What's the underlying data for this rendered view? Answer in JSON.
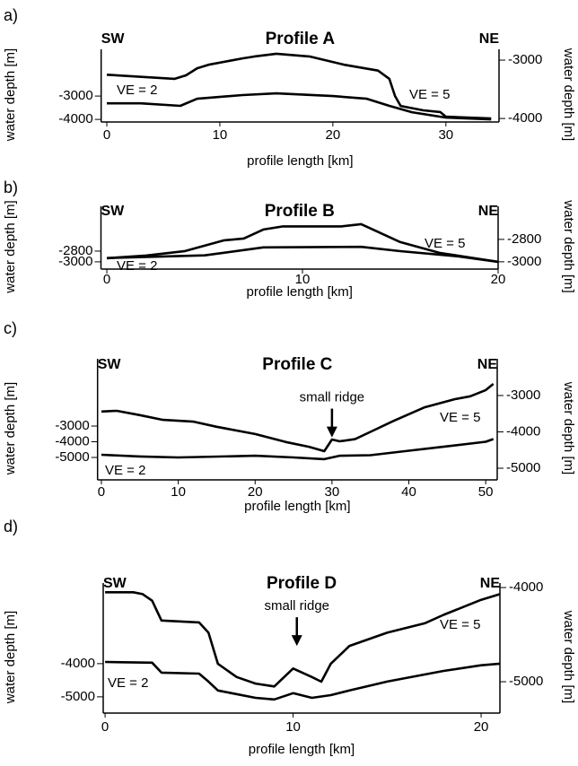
{
  "chart_data": [
    {
      "type": "line",
      "panel_label": "a)",
      "title": "Profile A",
      "left_label": "SW",
      "right_label": "NE",
      "xlabel": "profile length [km]",
      "ylabel": "water depth [m]",
      "y2label": "water depth [m]",
      "xlim": [
        -0.5,
        34.7
      ],
      "xticks": [
        0,
        10,
        20,
        30
      ],
      "ylim": [
        -4110,
        -1000
      ],
      "yticks": [
        -3000,
        -4000
      ],
      "y2lim": [
        -4060,
        -2815
      ],
      "y2ticks": [
        -3000,
        -4000
      ],
      "series": [
        {
          "name": "VE = 2",
          "color": "#000000",
          "axis": "y",
          "x": [
            0,
            3,
            6.5,
            8,
            12,
            15,
            20,
            23,
            25,
            27,
            30,
            34
          ],
          "values": [
            -3310,
            -3310,
            -3420,
            -3115,
            -2960,
            -2885,
            -3000,
            -3115,
            -3420,
            -3690,
            -3920,
            -4000
          ]
        },
        {
          "name": "VE = 5",
          "color": "#000000",
          "axis": "y2",
          "x": [
            0,
            6,
            7,
            8,
            9,
            12,
            13,
            15,
            18,
            21,
            24,
            25,
            25.5,
            26,
            28,
            29.5,
            30,
            34
          ],
          "values": [
            -3250,
            -3320,
            -3260,
            -3140,
            -3080,
            -2970,
            -2940,
            -2890,
            -2940,
            -3080,
            -3180,
            -3320,
            -3615,
            -3785,
            -3860,
            -3890,
            -3970,
            -4000
          ]
        }
      ]
    },
    {
      "type": "line",
      "panel_label": "b)",
      "title": "Profile B",
      "left_label": "SW",
      "right_label": "NE",
      "xlabel": "profile length [km]",
      "ylabel": "water depth [m]",
      "y2label": "water depth [m]",
      "xlim": [
        -0.3,
        20
      ],
      "xticks": [
        0,
        10,
        20
      ],
      "ylim": [
        -3135,
        -1965
      ],
      "yticks": [
        -2800,
        -3000
      ],
      "y2lim": [
        -3065,
        -2505
      ],
      "y2ticks": [
        -2800,
        -3000
      ],
      "series": [
        {
          "name": "VE = 2",
          "color": "#000000",
          "axis": "y",
          "x": [
            0,
            5,
            8,
            13,
            15,
            18,
            20
          ],
          "values": [
            -2930,
            -2880,
            -2730,
            -2720,
            -2800,
            -2900,
            -3000
          ]
        },
        {
          "name": "VE = 5",
          "color": "#000000",
          "axis": "y2",
          "x": [
            0,
            2,
            4,
            6,
            7,
            8,
            9,
            12,
            13,
            14,
            15,
            17,
            20
          ],
          "values": [
            -2968,
            -2944,
            -2904,
            -2808,
            -2792,
            -2712,
            -2684,
            -2684,
            -2664,
            -2744,
            -2824,
            -2920,
            -3000
          ]
        }
      ]
    },
    {
      "type": "line",
      "panel_label": "c)",
      "title": "Profile C",
      "left_label": "SW",
      "right_label": "NE",
      "xlabel": "profile length [km]",
      "ylabel": "water depth [m]",
      "y2label": "water depth [m]",
      "xlim": [
        -0.5,
        51.5
      ],
      "xticks": [
        0,
        10,
        20,
        30,
        40,
        50
      ],
      "ylim": [
        -6430,
        1290
      ],
      "yticks": [
        -3000,
        -4000,
        -5000
      ],
      "y2lim": [
        -5320,
        -1990
      ],
      "y2ticks": [
        -3000,
        -4000,
        -5000
      ],
      "annotations": [
        {
          "text": "small ridge",
          "x": 30,
          "y": -4150
        }
      ],
      "series": [
        {
          "name": "VE = 2",
          "color": "#000000",
          "axis": "y",
          "x": [
            0,
            5,
            10,
            20,
            25,
            29,
            31,
            35,
            40,
            45,
            50,
            51
          ],
          "values": [
            -4830,
            -4940,
            -5000,
            -4890,
            -5000,
            -5110,
            -4890,
            -4860,
            -4570,
            -4290,
            -4000,
            -3830
          ]
        },
        {
          "name": "VE = 5",
          "color": "#000000",
          "axis": "y2",
          "x": [
            0,
            2,
            5,
            8,
            12,
            15,
            20,
            24,
            27,
            29,
            30,
            31,
            33,
            35,
            38,
            42,
            46,
            48,
            50,
            51
          ],
          "values": [
            -3440,
            -3420,
            -3540,
            -3670,
            -3720,
            -3860,
            -4060,
            -4280,
            -4410,
            -4530,
            -4210,
            -4260,
            -4200,
            -4000,
            -3700,
            -3330,
            -3100,
            -3020,
            -2850,
            -2680
          ]
        }
      ]
    },
    {
      "type": "line",
      "panel_label": "d)",
      "title": "Profile D",
      "left_label": "SW",
      "right_label": "NE",
      "xlabel": "profile length [km]",
      "ylabel": "water depth [m]",
      "y2label": "water depth [m]",
      "xlim": [
        -0.1,
        21
      ],
      "xticks": [
        0,
        10,
        20
      ],
      "ylim": [
        -5490,
        -1570
      ],
      "yticks": [
        -4000,
        -5000
      ],
      "y2lim": [
        -5333,
        -3952
      ],
      "y2ticks": [
        -4000,
        -5000
      ],
      "annotations": [
        {
          "text": "small ridge",
          "x": 10.2,
          "y": -4620
        }
      ],
      "series": [
        {
          "name": "VE = 2",
          "color": "#000000",
          "axis": "y",
          "x": [
            0,
            2.5,
            3,
            5,
            5.5,
            6,
            8,
            9,
            10,
            11,
            12,
            13,
            15,
            18,
            20,
            21
          ],
          "values": [
            -3950,
            -3970,
            -4270,
            -4300,
            -4540,
            -4810,
            -5030,
            -5080,
            -4890,
            -5030,
            -4950,
            -4810,
            -4540,
            -4220,
            -4050,
            -4000
          ]
        },
        {
          "name": "VE = 5",
          "color": "#000000",
          "axis": "y2",
          "x": [
            0,
            1.5,
            2,
            2.5,
            3,
            5,
            5.5,
            6,
            7,
            8,
            9,
            10,
            11,
            11.5,
            12,
            13,
            15,
            17,
            18,
            20,
            21
          ],
          "values": [
            -4050,
            -4050,
            -4070,
            -4140,
            -4350,
            -4370,
            -4480,
            -4810,
            -4950,
            -5020,
            -5050,
            -4860,
            -4950,
            -5000,
            -4810,
            -4620,
            -4480,
            -4380,
            -4290,
            -4130,
            -4070
          ]
        }
      ]
    }
  ]
}
